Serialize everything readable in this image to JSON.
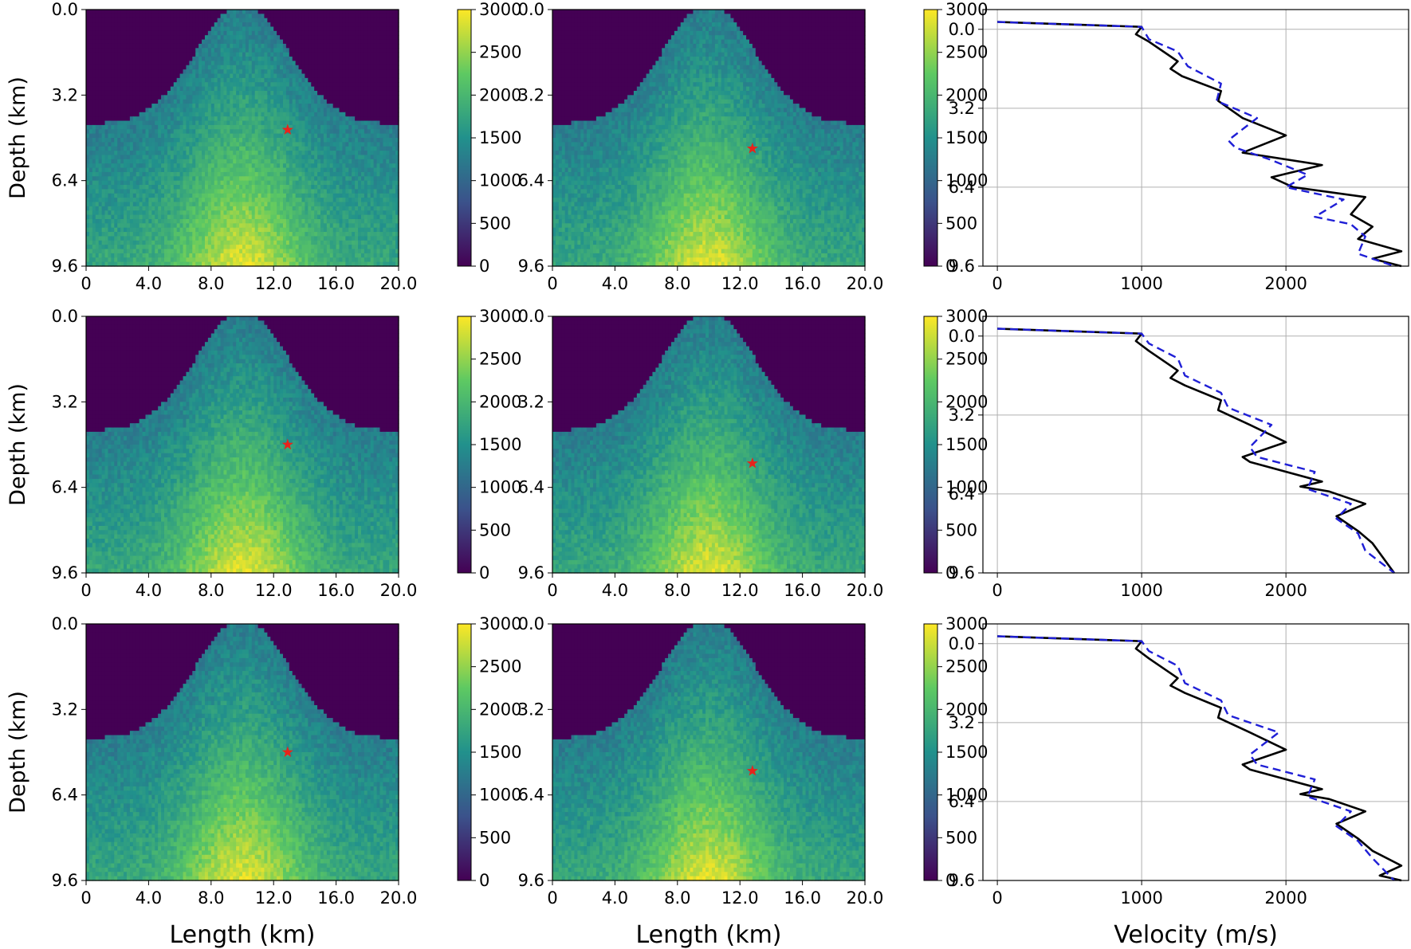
{
  "colorscale": {
    "name": "viridis",
    "stops": [
      "#440154",
      "#3b528b",
      "#21918c",
      "#5ec962",
      "#fde725"
    ],
    "range": [
      0,
      3000
    ],
    "ticks": [
      0,
      500,
      1000,
      1500,
      2000,
      2500,
      3000
    ]
  },
  "line_colors": {
    "true": "#000000",
    "predicted": "#1f1fd6",
    "marker": "#e8231b"
  },
  "labels": {
    "depth": "Depth (km)",
    "length": "Length (km)",
    "velocity": "Velocity (m/s)"
  },
  "chart_data": [
    {
      "type": "heatmap",
      "row": 1,
      "col": 1,
      "xlim": [
        0,
        20
      ],
      "ylim": [
        9.6,
        0
      ],
      "xticks": [
        "0",
        "4.0",
        "8.0",
        "12.0",
        "16.0",
        "20.0"
      ],
      "yticks": [
        "0.0",
        "3.2",
        "6.4",
        "9.6"
      ],
      "marker": {
        "x": 12.9,
        "y": 4.5
      },
      "colorbar_ticks": [
        0,
        500,
        1000,
        1500,
        2000,
        2500,
        3000
      ],
      "ylabel": "Depth (km)",
      "xlabel": ""
    },
    {
      "type": "heatmap",
      "row": 1,
      "col": 2,
      "xlim": [
        0,
        20
      ],
      "ylim": [
        9.6,
        0
      ],
      "xticks": [
        "0",
        "4.0",
        "8.0",
        "12.0",
        "16.0",
        "20.0"
      ],
      "yticks": [
        "0.0",
        "3.2",
        "6.4",
        "9.6"
      ],
      "marker": {
        "x": 12.8,
        "y": 5.2
      },
      "colorbar_ticks": [
        0,
        500,
        1000,
        1500,
        2000,
        2500,
        3000
      ],
      "ylabel": "",
      "xlabel": ""
    },
    {
      "type": "line",
      "row": 1,
      "col": 3,
      "xlim": [
        -100,
        2850
      ],
      "ylim": [
        9.6,
        -0.8
      ],
      "xticks": [
        0,
        1000,
        2000
      ],
      "yticks": [
        "0.0",
        "3.2",
        "6.4",
        "9.6"
      ],
      "grid": true,
      "series": [
        {
          "style": "solid",
          "color": "#000000",
          "x": [
            0,
            1000,
            960,
            1050,
            1250,
            1200,
            1280,
            1550,
            1530,
            1700,
            2000,
            1700,
            2250,
            1900,
            2050,
            2550,
            2450,
            2600,
            2500,
            2800,
            2600,
            2800
          ],
          "y": [
            -0.3,
            -0.1,
            0.2,
            0.5,
            1.3,
            1.6,
            1.9,
            2.5,
            2.9,
            3.6,
            4.3,
            5.0,
            5.5,
            6.0,
            6.4,
            6.8,
            7.5,
            8.0,
            8.5,
            9.0,
            9.3,
            9.6
          ]
        },
        {
          "style": "dashed",
          "color": "#1f1fd6",
          "x": [
            0,
            1000,
            1050,
            1250,
            1320,
            1550,
            1520,
            1800,
            1600,
            1650,
            1900,
            2150,
            2000,
            2400,
            2200,
            2450,
            2550,
            2500,
            2750
          ],
          "y": [
            -0.3,
            -0.1,
            0.4,
            0.9,
            1.5,
            2.2,
            2.9,
            3.6,
            4.5,
            4.8,
            5.3,
            5.9,
            6.4,
            6.9,
            7.6,
            7.9,
            8.4,
            9.1,
            9.6
          ]
        }
      ],
      "xlabel": ""
    },
    {
      "type": "heatmap",
      "row": 2,
      "col": 1,
      "xlim": [
        0,
        20
      ],
      "ylim": [
        9.6,
        0
      ],
      "xticks": [
        "0",
        "4.0",
        "8.0",
        "12.0",
        "16.0",
        "20.0"
      ],
      "yticks": [
        "0.0",
        "3.2",
        "6.4",
        "9.6"
      ],
      "marker": {
        "x": 12.9,
        "y": 4.8
      },
      "colorbar_ticks": [
        0,
        500,
        1000,
        1500,
        2000,
        2500,
        3000
      ],
      "ylabel": "Depth (km)",
      "xlabel": ""
    },
    {
      "type": "heatmap",
      "row": 2,
      "col": 2,
      "xlim": [
        0,
        20
      ],
      "ylim": [
        9.6,
        0
      ],
      "xticks": [
        "0",
        "4.0",
        "8.0",
        "12.0",
        "16.0",
        "20.0"
      ],
      "yticks": [
        "0.0",
        "3.2",
        "6.4",
        "9.6"
      ],
      "marker": {
        "x": 12.8,
        "y": 5.5
      },
      "colorbar_ticks": [
        0,
        500,
        1000,
        1500,
        2000,
        2500,
        3000
      ],
      "ylabel": "",
      "xlabel": ""
    },
    {
      "type": "line",
      "row": 2,
      "col": 3,
      "xlim": [
        -100,
        2850
      ],
      "ylim": [
        9.6,
        -0.8
      ],
      "xticks": [
        0,
        1000,
        2000
      ],
      "yticks": [
        "0.0",
        "3.2",
        "6.4",
        "9.6"
      ],
      "grid": true,
      "series": [
        {
          "style": "solid",
          "color": "#000000",
          "x": [
            0,
            1000,
            960,
            1050,
            1250,
            1200,
            1300,
            1550,
            1530,
            1750,
            2000,
            1700,
            1750,
            2250,
            2100,
            2300,
            2550,
            2350,
            2500,
            2600,
            2750
          ],
          "y": [
            -0.3,
            -0.1,
            0.2,
            0.6,
            1.4,
            1.7,
            2.0,
            2.6,
            3.0,
            3.6,
            4.3,
            4.9,
            5.1,
            5.9,
            6.1,
            6.3,
            6.8,
            7.3,
            7.9,
            8.4,
            9.6
          ]
        },
        {
          "style": "dashed",
          "color": "#1f1fd6",
          "x": [
            0,
            1000,
            1050,
            1250,
            1300,
            1550,
            1600,
            1900,
            1750,
            1800,
            2200,
            2150,
            2450,
            2350,
            2500,
            2550,
            2750
          ],
          "y": [
            -0.3,
            -0.1,
            0.3,
            0.9,
            1.6,
            2.3,
            2.9,
            3.6,
            4.5,
            4.9,
            5.5,
            6.2,
            6.8,
            7.4,
            8.0,
            8.7,
            9.6
          ]
        }
      ],
      "xlabel": ""
    },
    {
      "type": "heatmap",
      "row": 3,
      "col": 1,
      "xlim": [
        0,
        20
      ],
      "ylim": [
        9.6,
        0
      ],
      "xticks": [
        "0",
        "4.0",
        "8.0",
        "12.0",
        "16.0",
        "20.0"
      ],
      "yticks": [
        "0.0",
        "3.2",
        "6.4",
        "9.6"
      ],
      "marker": {
        "x": 12.9,
        "y": 4.8
      },
      "colorbar_ticks": [
        0,
        500,
        1000,
        1500,
        2000,
        2500,
        3000
      ],
      "ylabel": "Depth (km)",
      "xlabel": "Length (km)"
    },
    {
      "type": "heatmap",
      "row": 3,
      "col": 2,
      "xlim": [
        0,
        20
      ],
      "ylim": [
        9.6,
        0
      ],
      "xticks": [
        "0",
        "4.0",
        "8.0",
        "12.0",
        "16.0",
        "20.0"
      ],
      "yticks": [
        "0.0",
        "3.2",
        "6.4",
        "9.6"
      ],
      "marker": {
        "x": 12.8,
        "y": 5.5
      },
      "colorbar_ticks": [
        0,
        500,
        1000,
        1500,
        2000,
        2500,
        3000
      ],
      "ylabel": "",
      "xlabel": "Length (km)"
    },
    {
      "type": "line",
      "row": 3,
      "col": 3,
      "xlim": [
        -100,
        2850
      ],
      "ylim": [
        9.6,
        -0.8
      ],
      "xticks": [
        0,
        1000,
        2000
      ],
      "yticks": [
        "0.0",
        "3.2",
        "6.4",
        "9.6"
      ],
      "grid": true,
      "series": [
        {
          "style": "solid",
          "color": "#000000",
          "x": [
            0,
            1000,
            960,
            1050,
            1250,
            1200,
            1300,
            1550,
            1530,
            1750,
            2000,
            1700,
            1750,
            2250,
            2100,
            2300,
            2550,
            2350,
            2500,
            2600,
            2800,
            2650,
            2800
          ],
          "y": [
            -0.3,
            -0.1,
            0.2,
            0.6,
            1.4,
            1.7,
            2.0,
            2.6,
            3.0,
            3.6,
            4.3,
            4.9,
            5.1,
            5.9,
            6.1,
            6.3,
            6.8,
            7.3,
            7.9,
            8.4,
            9.0,
            9.4,
            9.6
          ]
        },
        {
          "style": "dashed",
          "color": "#1f1fd6",
          "x": [
            0,
            1000,
            1050,
            1250,
            1300,
            1550,
            1600,
            1950,
            1750,
            1800,
            2200,
            2150,
            2450,
            2350,
            2500,
            2600,
            2750
          ],
          "y": [
            -0.3,
            -0.1,
            0.3,
            0.9,
            1.6,
            2.3,
            2.9,
            3.6,
            4.5,
            4.9,
            5.5,
            6.2,
            6.8,
            7.4,
            8.0,
            8.7,
            9.6
          ]
        }
      ],
      "xlabel": "Velocity (m/s)"
    }
  ]
}
